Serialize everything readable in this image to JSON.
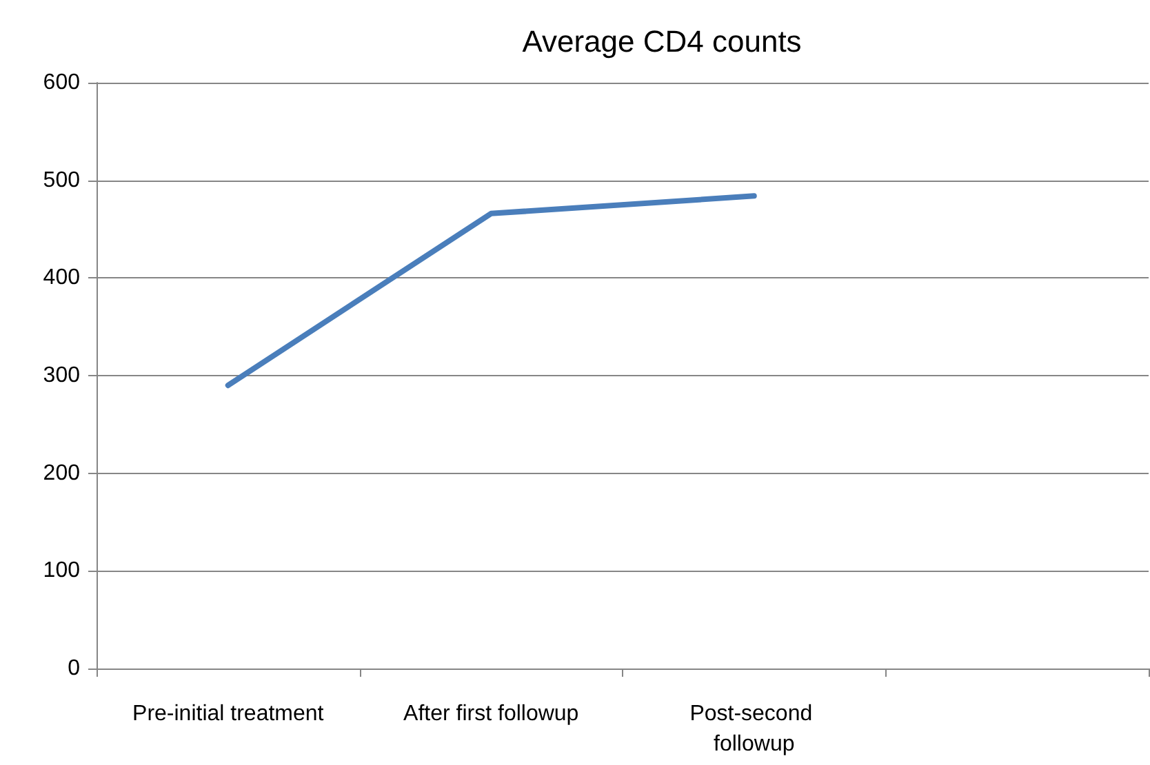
{
  "chart_data": {
    "type": "line",
    "title": "Average CD4 counts",
    "categories": [
      "Pre-initial treatment",
      "After first followup",
      "Post-second followup",
      null
    ],
    "series": [
      {
        "color": "#4a7ebb",
        "values": [
          290,
          466,
          484,
          null
        ]
      }
    ],
    "ylim": [
      0,
      600
    ],
    "yticks": [
      0,
      100,
      200,
      300,
      400,
      500,
      600
    ],
    "grid": "y",
    "marker": "none",
    "line_style": "solid"
  }
}
